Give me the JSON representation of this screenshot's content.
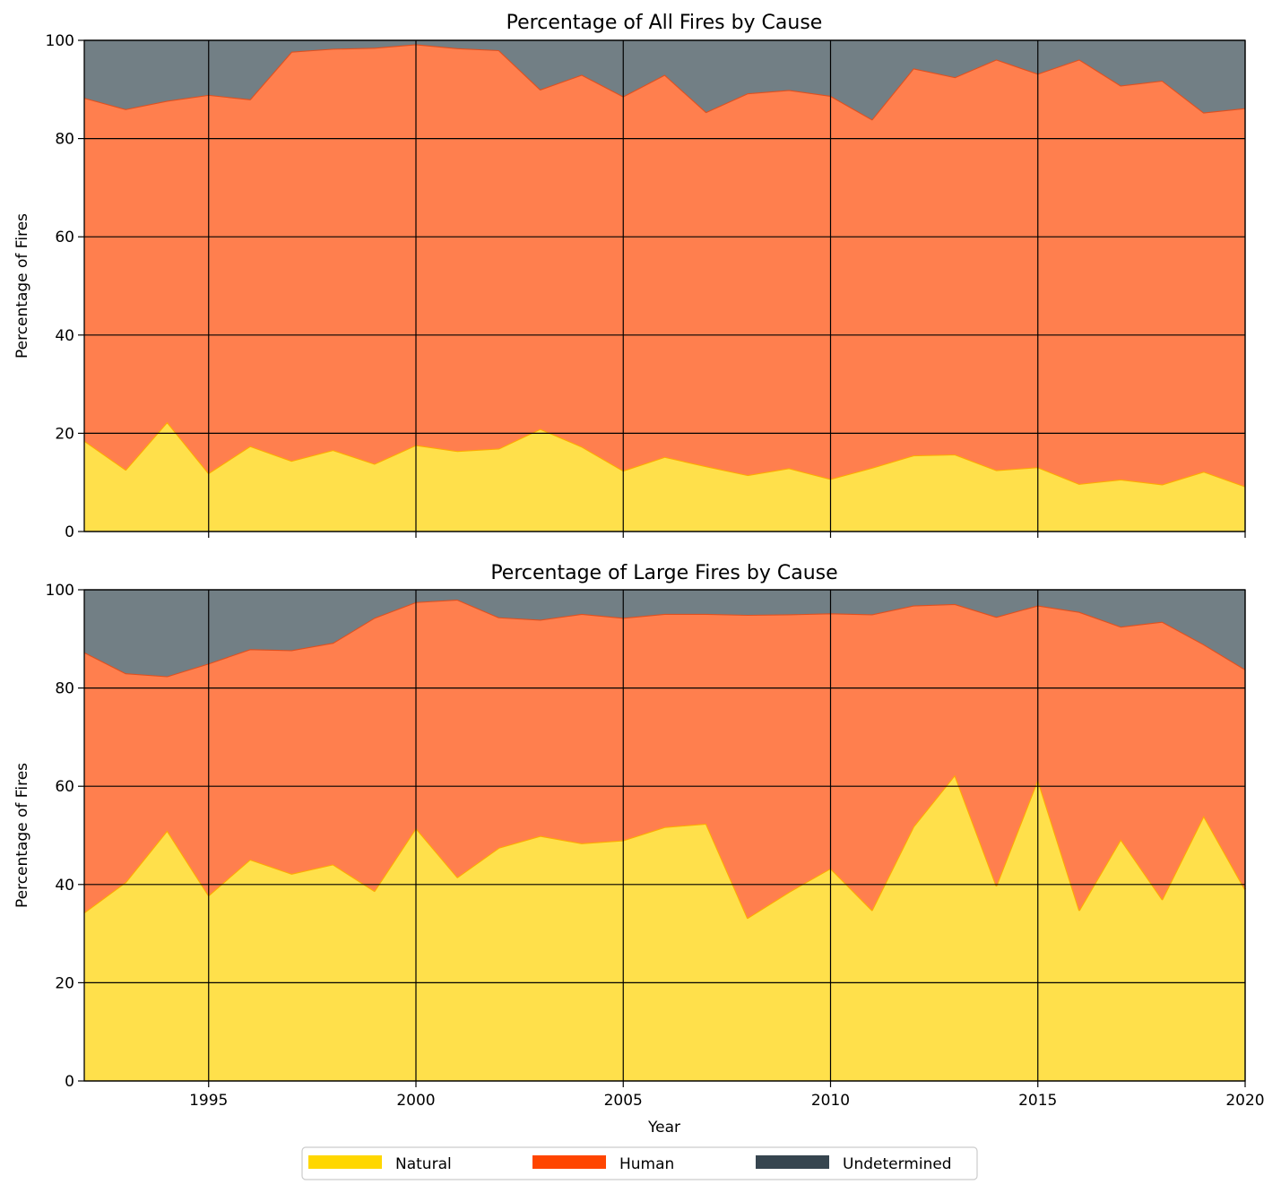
{
  "chart_data": [
    {
      "type": "area",
      "title": "Percentage of All Fires by Cause",
      "ylabel": "Percentage of Fires",
      "xlabel": "",
      "stacked": true,
      "x": [
        1992,
        1993,
        1994,
        1995,
        1996,
        1997,
        1998,
        1999,
        2000,
        2001,
        2002,
        2003,
        2004,
        2005,
        2006,
        2007,
        2008,
        2009,
        2010,
        2011,
        2012,
        2013,
        2014,
        2015,
        2016,
        2017,
        2018,
        2019,
        2020
      ],
      "xlim": [
        1992,
        2020
      ],
      "ylim": [
        0,
        100
      ],
      "xticks": [
        "1995",
        "2000",
        "2005",
        "2010",
        "2015",
        "2020"
      ],
      "yticks": [
        "0",
        "20",
        "40",
        "60",
        "80",
        "100"
      ],
      "grid": true,
      "series": [
        {
          "name": "Natural",
          "values": [
            18.5,
            12.6,
            22.3,
            11.9,
            17.4,
            14.4,
            16.6,
            13.8,
            17.6,
            16.4,
            16.9,
            20.9,
            17.3,
            12.4,
            15.2,
            13.3,
            11.5,
            12.9,
            10.7,
            13.0,
            15.5,
            15.7,
            12.5,
            13.1,
            9.7,
            10.6,
            9.6,
            12.2,
            9.2
          ]
        },
        {
          "name": "Human",
          "values": [
            69.8,
            73.4,
            65.4,
            77.0,
            70.6,
            83.3,
            81.7,
            84.7,
            81.6,
            82.0,
            81.1,
            69.1,
            75.7,
            76.2,
            77.8,
            72.1,
            77.7,
            77.0,
            78.0,
            70.9,
            78.8,
            76.8,
            83.6,
            80.1,
            86.4,
            80.2,
            82.2,
            73.1,
            77.0
          ]
        },
        {
          "name": "Undetermined",
          "values": [
            11.7,
            14.0,
            12.3,
            11.1,
            12.0,
            2.3,
            1.7,
            1.5,
            0.8,
            1.6,
            2.0,
            10.0,
            7.0,
            11.4,
            7.0,
            14.6,
            10.8,
            10.1,
            11.3,
            16.1,
            5.7,
            7.5,
            3.9,
            6.8,
            3.9,
            9.2,
            8.2,
            14.7,
            13.8
          ]
        }
      ]
    },
    {
      "type": "area",
      "title": "Percentage of Large Fires by Cause",
      "ylabel": "Percentage of Fires",
      "xlabel": "Year",
      "stacked": true,
      "x": [
        1992,
        1993,
        1994,
        1995,
        1996,
        1997,
        1998,
        1999,
        2000,
        2001,
        2002,
        2003,
        2004,
        2005,
        2006,
        2007,
        2008,
        2009,
        2010,
        2011,
        2012,
        2013,
        2014,
        2015,
        2016,
        2017,
        2018,
        2019,
        2020
      ],
      "xlim": [
        1992,
        2020
      ],
      "ylim": [
        0,
        100
      ],
      "xticks": [
        "1995",
        "2000",
        "2005",
        "2010",
        "2015",
        "2020"
      ],
      "yticks": [
        "0",
        "20",
        "40",
        "60",
        "80",
        "100"
      ],
      "grid": true,
      "series": [
        {
          "name": "Natural",
          "values": [
            34.3,
            40.5,
            51.0,
            37.8,
            45.1,
            42.2,
            44.1,
            38.7,
            51.5,
            41.5,
            47.5,
            49.9,
            48.4,
            49.0,
            51.7,
            52.4,
            33.2,
            38.5,
            43.3,
            34.8,
            51.8,
            62.3,
            39.8,
            61.4,
            34.8,
            49.2,
            37.0,
            54.0,
            39.0
          ]
        },
        {
          "name": "Human",
          "values": [
            53.0,
            42.5,
            31.4,
            47.2,
            42.8,
            45.5,
            45.1,
            55.6,
            46.0,
            56.5,
            46.9,
            44.0,
            46.7,
            45.3,
            43.4,
            42.7,
            61.7,
            56.5,
            51.9,
            60.2,
            45.0,
            34.8,
            54.7,
            35.4,
            60.7,
            43.3,
            56.5,
            34.9,
            44.8
          ]
        },
        {
          "name": "Undetermined",
          "values": [
            12.7,
            17.0,
            17.6,
            15.0,
            12.1,
            12.3,
            10.8,
            5.7,
            2.5,
            2.0,
            5.6,
            6.1,
            4.9,
            5.7,
            4.9,
            4.9,
            5.1,
            5.0,
            4.8,
            5.0,
            3.2,
            2.9,
            5.5,
            3.2,
            4.5,
            7.5,
            6.5,
            11.1,
            16.2
          ]
        }
      ]
    }
  ],
  "legend": {
    "placement": "bottom-center",
    "items": [
      {
        "label": "Natural",
        "color": "#ffd700"
      },
      {
        "label": "Human",
        "color": "#ff4500"
      },
      {
        "label": "Undetermined",
        "color": "#36454f"
      }
    ]
  },
  "colors": {
    "natural_fill": "#ffe04b",
    "natural_line": "#ffaa00",
    "human_fill": "#ff7f4e",
    "human_line": "#e0501f",
    "undetermined_fill": "#727f85"
  }
}
